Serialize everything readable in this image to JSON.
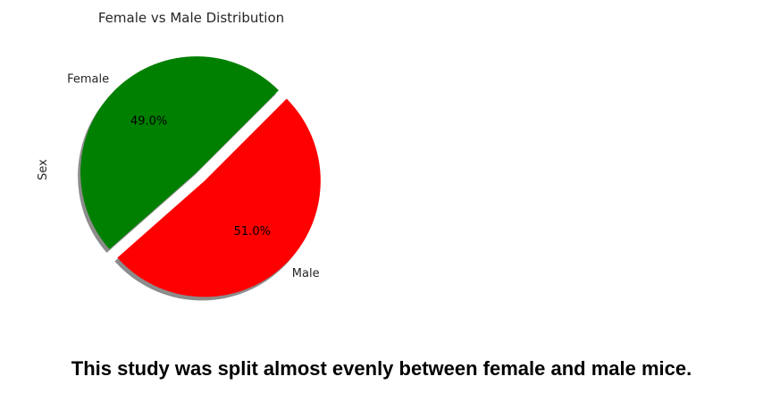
{
  "chart_data": {
    "type": "pie",
    "title": "Female vs Male Distribution",
    "ylabel": "Sex",
    "slices": [
      {
        "label": "Female",
        "value": 49.0,
        "pct_label": "49.0%",
        "color": "#008000",
        "exploded": false
      },
      {
        "label": "Male",
        "value": 51.0,
        "pct_label": "51.0%",
        "color": "#ff0000",
        "exploded": true
      }
    ],
    "shadow": true
  },
  "caption": "This study was split almost evenly between female and male mice."
}
